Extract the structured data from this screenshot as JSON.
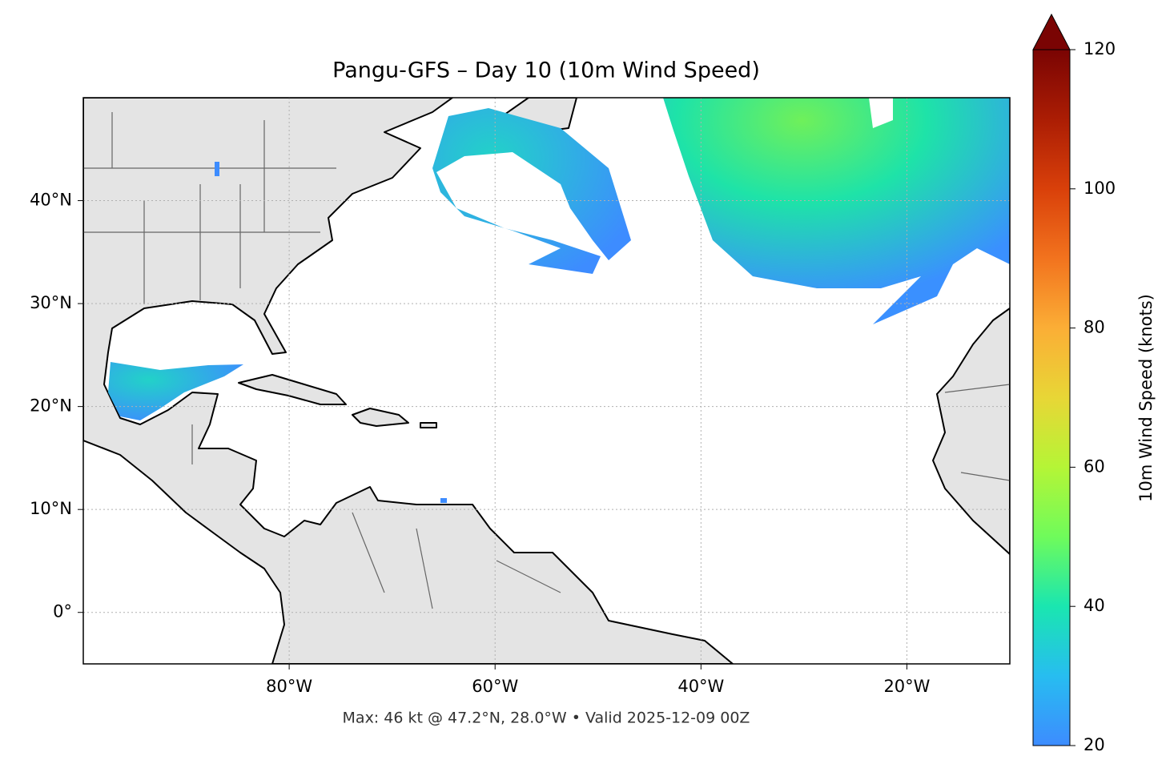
{
  "map": {
    "title": "Pangu-GFS – Day 10 (10m Wind Speed)",
    "footer": "Max: 46 kt @ 47.2°N, 28.0°W • Valid 2025-12-09 00Z",
    "xlim": [
      -100,
      -10
    ],
    "ylim": [
      -5,
      50
    ],
    "xticks": [
      {
        "value": -80,
        "label": "80°W"
      },
      {
        "value": -60,
        "label": "60°W"
      },
      {
        "value": -40,
        "label": "40°W"
      },
      {
        "value": -20,
        "label": "20°W"
      }
    ],
    "yticks": [
      {
        "value": 0,
        "label": "0°"
      },
      {
        "value": 10,
        "label": "10°N"
      },
      {
        "value": 20,
        "label": "20°N"
      },
      {
        "value": 30,
        "label": "30°N"
      },
      {
        "value": 40,
        "label": "40°N"
      }
    ]
  },
  "colorbar": {
    "label": "10m Wind Speed (knots)",
    "lim": [
      20,
      120
    ],
    "ticks": [
      20,
      40,
      60,
      80,
      100,
      120
    ]
  }
}
